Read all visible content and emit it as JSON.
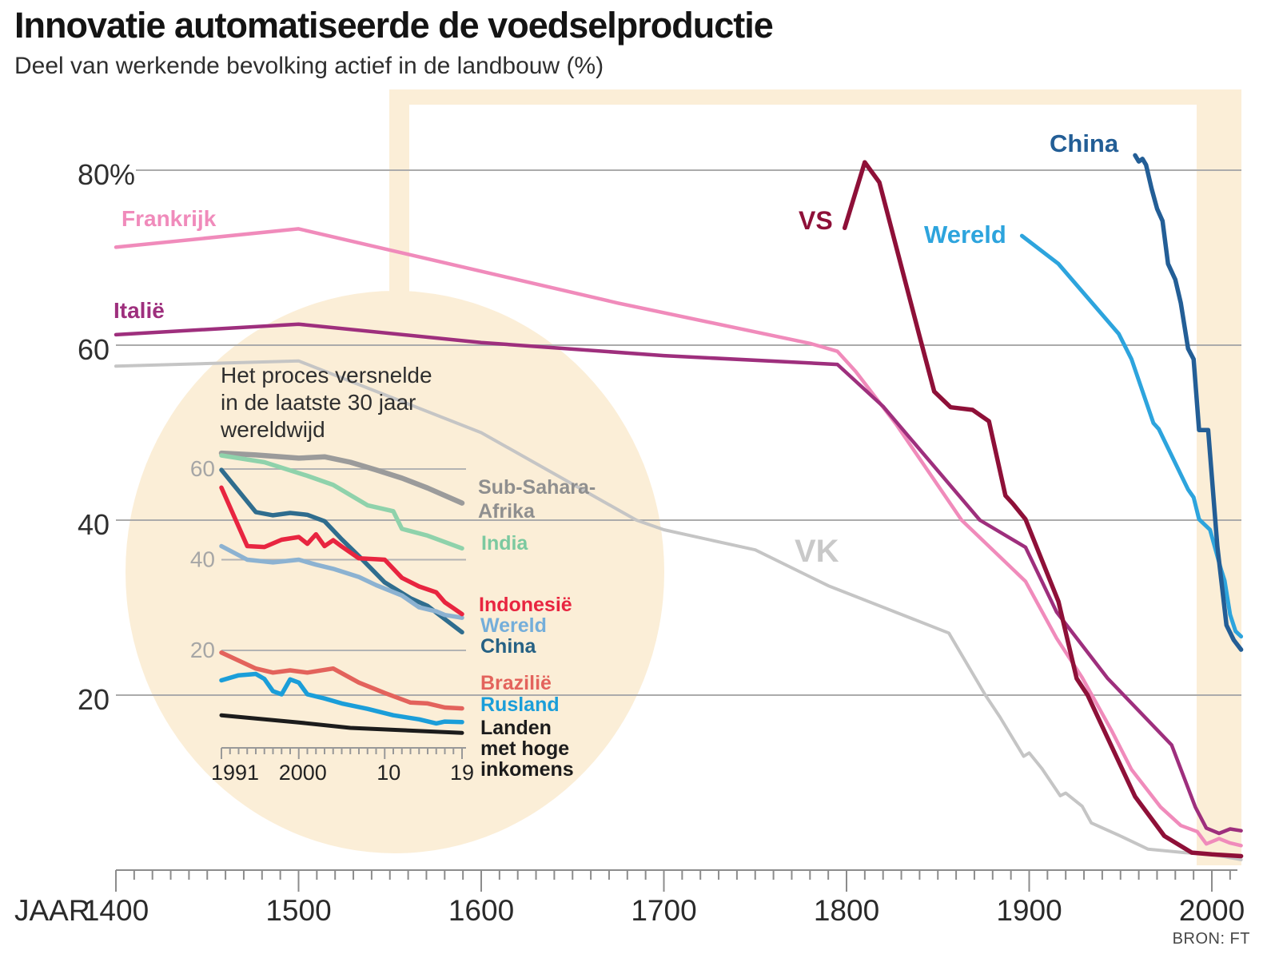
{
  "header": {
    "title": "Innovatie automatiseerde de voedselproductie",
    "subtitle": "Deel van werkende bevolking actief in de landbouw (%)"
  },
  "source": "BRON: FT",
  "chart_data": {
    "type": "line",
    "title": "Innovatie automatiseerde de voedselproductie",
    "subtitle": "Deel van werkende bevolking actief in de landbouw (%)",
    "highlight_color": "#fbeed7",
    "main": {
      "x_axis_title": "JAAR",
      "x_range": [
        1400,
        2019
      ],
      "ylim": [
        0,
        89
      ],
      "grid": true,
      "legend_position": "inline-labels",
      "gridlines": [
        {
          "value": 80,
          "label": "80%"
        },
        {
          "value": 60,
          "label": "60"
        },
        {
          "value": 40,
          "label": "40"
        },
        {
          "value": 20,
          "label": "20"
        }
      ],
      "x_labels": [
        {
          "label": "1400",
          "year": 1400
        },
        {
          "label": "1500",
          "year": 1500
        },
        {
          "label": "1600",
          "year": 1600
        },
        {
          "label": "1700",
          "year": 1700
        },
        {
          "label": "1800",
          "year": 1800
        },
        {
          "label": "1900",
          "year": 1900
        },
        {
          "label": "2000",
          "year": 2000
        }
      ],
      "series": [
        {
          "id": "vk",
          "label": "VK",
          "color": "#c5c5c5",
          "label_color": "#c9c9c9",
          "points": [
            [
              1400,
              57.6
            ],
            [
              1500,
              58.2
            ],
            [
              1600,
              50.0
            ],
            [
              1685,
              40.0
            ],
            [
              1700,
              38.9
            ],
            [
              1750,
              36.6
            ],
            [
              1790,
              32.5
            ],
            [
              1856,
              27.1
            ],
            [
              1876,
              20.0
            ],
            [
              1884,
              17.5
            ],
            [
              1897,
              13.0
            ],
            [
              1900,
              13.4
            ],
            [
              1907,
              11.6
            ],
            [
              1917,
              8.5
            ],
            [
              1920,
              8.8
            ],
            [
              1929,
              7.3
            ],
            [
              1934,
              5.4
            ],
            [
              1951,
              3.8
            ],
            [
              1965,
              2.4
            ],
            [
              1985,
              2.0
            ],
            [
              2000,
              1.8
            ],
            [
              2016,
              1.2
            ]
          ]
        },
        {
          "id": "frankrijk",
          "label": "Frankrijk",
          "color": "#f08bbb",
          "points": [
            [
              1400,
              71.2
            ],
            [
              1500,
              73.3
            ],
            [
              1675,
              64.8
            ],
            [
              1780,
              60.2
            ],
            [
              1795,
              59.3
            ],
            [
              1805,
              57.0
            ],
            [
              1827,
              51.0
            ],
            [
              1863,
              40.0
            ],
            [
              1898,
              33.0
            ],
            [
              1915,
              26.5
            ],
            [
              1929,
              22.0
            ],
            [
              1945,
              16.0
            ],
            [
              1956,
              11.5
            ],
            [
              1972,
              7.2
            ],
            [
              1983,
              5.1
            ],
            [
              1992,
              4.4
            ],
            [
              1997,
              3.0
            ],
            [
              2004,
              3.6
            ],
            [
              2010,
              3.1
            ],
            [
              2016,
              2.8
            ]
          ]
        },
        {
          "id": "italie",
          "label": "Italië",
          "color": "#9e2f7d",
          "points": [
            [
              1400,
              61.2
            ],
            [
              1500,
              62.4
            ],
            [
              1600,
              60.3
            ],
            [
              1700,
              58.8
            ],
            [
              1795,
              57.8
            ],
            [
              1820,
              53.0
            ],
            [
              1873,
              40.0
            ],
            [
              1898,
              36.9
            ],
            [
              1915,
              29.5
            ],
            [
              1943,
              21.9
            ],
            [
              1978,
              14.3
            ],
            [
              1991,
              7.2
            ],
            [
              1997,
              4.8
            ],
            [
              2004,
              4.2
            ],
            [
              2010,
              4.7
            ],
            [
              2016,
              4.5
            ]
          ]
        },
        {
          "id": "vs",
          "label": "VS",
          "color": "#8e1038",
          "points": [
            [
              1799,
              73.4
            ],
            [
              1810,
              80.9
            ],
            [
              1818,
              78.6
            ],
            [
              1840,
              61.0
            ],
            [
              1848,
              54.7
            ],
            [
              1857,
              52.9
            ],
            [
              1869,
              52.6
            ],
            [
              1878,
              51.3
            ],
            [
              1887,
              42.8
            ],
            [
              1891,
              41.9
            ],
            [
              1898,
              40.1
            ],
            [
              1916,
              30.7
            ],
            [
              1926,
              21.9
            ],
            [
              1932,
              20.0
            ],
            [
              1958,
              8.4
            ],
            [
              1974,
              3.9
            ],
            [
              1989,
              2.0
            ],
            [
              2000,
              1.8
            ],
            [
              2016,
              1.6
            ]
          ]
        },
        {
          "id": "wereld",
          "label": "Wereld",
          "color": "#2da4dd",
          "points": [
            [
              1896,
              72.5
            ],
            [
              1916,
              69.3
            ],
            [
              1949,
              61.3
            ],
            [
              1956,
              58.4
            ],
            [
              1968,
              51.1
            ],
            [
              1971,
              50.4
            ],
            [
              1987,
              43.5
            ],
            [
              1990,
              42.6
            ],
            [
              1993,
              40.1
            ],
            [
              1996,
              39.5
            ],
            [
              1999,
              38.9
            ],
            [
              2005,
              34.4
            ],
            [
              2007,
              33.1
            ],
            [
              2010,
              29.2
            ],
            [
              2013,
              27.3
            ],
            [
              2016,
              26.7
            ]
          ]
        },
        {
          "id": "china",
          "label": "China",
          "color": "#235e96",
          "points": [
            [
              1958,
              81.7
            ],
            [
              1960,
              81.0
            ],
            [
              1962,
              81.3
            ],
            [
              1964,
              80.6
            ],
            [
              1967,
              77.9
            ],
            [
              1970,
              75.6
            ],
            [
              1973,
              74.2
            ],
            [
              1976,
              69.3
            ],
            [
              1980,
              67.5
            ],
            [
              1983,
              64.8
            ],
            [
              1987,
              59.6
            ],
            [
              1990,
              58.4
            ],
            [
              1993,
              50.3
            ],
            [
              1998,
              50.3
            ],
            [
              2003,
              37.0
            ],
            [
              2008,
              28.0
            ],
            [
              2012,
              26.3
            ],
            [
              2016,
              25.2
            ]
          ]
        }
      ]
    },
    "inset": {
      "note": [
        "Het proces versnelde",
        "in de laatste 30 jaar",
        "wereldwijd"
      ],
      "x_range": [
        1991,
        2019
      ],
      "ylim": [
        0,
        68
      ],
      "gridlines": [
        {
          "value": 60,
          "label": "60"
        },
        {
          "value": 40,
          "label": "40"
        },
        {
          "value": 20,
          "label": "20"
        }
      ],
      "x_labels": [
        {
          "label": "1991",
          "year": 1991,
          "dx": 17
        },
        {
          "label": "2000",
          "year": 2000,
          "dx": 5
        },
        {
          "label": "10",
          "year": 2010,
          "dx": 5
        },
        {
          "label": "19",
          "year": 2019,
          "dx": 0
        }
      ],
      "major_tick_years": [
        1991,
        2000,
        2010,
        2019
      ],
      "series": [
        {
          "id": "sub_sahara",
          "label": [
            "Sub-Sahara-",
            "Afrika"
          ],
          "color": "#9b9b9b",
          "label_color": "#8f8f8f",
          "points": [
            [
              1991,
              63.5
            ],
            [
              1995,
              63.1
            ],
            [
              2000,
              62.4
            ],
            [
              2003,
              62.7
            ],
            [
              2006,
              61.5
            ],
            [
              2009,
              59.8
            ],
            [
              2012,
              58.0
            ],
            [
              2015,
              55.8
            ],
            [
              2019,
              52.5
            ]
          ]
        },
        {
          "id": "india",
          "label": "India",
          "color": "#8fd2ab",
          "label_color": "#7cc9a0",
          "points": [
            [
              1991,
              63.0
            ],
            [
              1996,
              61.5
            ],
            [
              2001,
              58.5
            ],
            [
              2004,
              56.5
            ],
            [
              2008,
              52.0
            ],
            [
              2011,
              50.7
            ],
            [
              2012,
              46.8
            ],
            [
              2015,
              45.3
            ],
            [
              2019,
              42.5
            ]
          ]
        },
        {
          "id": "china",
          "label": "China",
          "color": "#2f6d8e",
          "label_color": "#266184",
          "points": [
            [
              1991,
              59.8
            ],
            [
              1995,
              50.5
            ],
            [
              1997,
              49.8
            ],
            [
              1999,
              50.3
            ],
            [
              2001,
              49.9
            ],
            [
              2003,
              48.5
            ],
            [
              2005,
              44.5
            ],
            [
              2007,
              40.8
            ],
            [
              2010,
              35.0
            ],
            [
              2013,
              31.5
            ],
            [
              2015,
              29.8
            ],
            [
              2019,
              24.0
            ]
          ]
        },
        {
          "id": "wereld",
          "label": "Wereld",
          "color": "#8cb2d1",
          "label_color": "#74aeda",
          "points": [
            [
              1991,
              43.0
            ],
            [
              1994,
              40.0
            ],
            [
              1997,
              39.4
            ],
            [
              2000,
              40.0
            ],
            [
              2002,
              38.9
            ],
            [
              2004,
              38.0
            ],
            [
              2007,
              36.2
            ],
            [
              2009,
              34.4
            ],
            [
              2012,
              32.1
            ],
            [
              2014,
              29.5
            ],
            [
              2016,
              28.6
            ],
            [
              2017,
              27.8
            ],
            [
              2019,
              27.2
            ]
          ]
        },
        {
          "id": "indonesie",
          "label": "Indonesië",
          "color": "#e82540",
          "points": [
            [
              1991,
              55.9
            ],
            [
              1994,
              43.0
            ],
            [
              1996,
              42.8
            ],
            [
              1998,
              44.4
            ],
            [
              2000,
              45.0
            ],
            [
              2001,
              43.5
            ],
            [
              2002,
              45.6
            ],
            [
              2003,
              43.0
            ],
            [
              2004,
              44.3
            ],
            [
              2005,
              42.9
            ],
            [
              2007,
              40.3
            ],
            [
              2009,
              40.1
            ],
            [
              2010,
              40.0
            ],
            [
              2012,
              36.0
            ],
            [
              2014,
              34.1
            ],
            [
              2016,
              32.8
            ],
            [
              2017,
              30.6
            ],
            [
              2019,
              28.0
            ]
          ]
        },
        {
          "id": "brazilie",
          "label": "Brazilië",
          "color": "#e3635c",
          "points": [
            [
              1991,
              19.5
            ],
            [
              1995,
              16.0
            ],
            [
              1997,
              15.1
            ],
            [
              1999,
              15.6
            ],
            [
              2001,
              15.1
            ],
            [
              2004,
              16.0
            ],
            [
              2007,
              12.9
            ],
            [
              2010,
              10.6
            ],
            [
              2013,
              8.5
            ],
            [
              2015,
              8.3
            ],
            [
              2017,
              7.4
            ],
            [
              2019,
              7.2
            ]
          ]
        },
        {
          "id": "rusland",
          "label": "Rusland",
          "color": "#1b9ed9",
          "points": [
            [
              1991,
              13.4
            ],
            [
              1993,
              14.5
            ],
            [
              1995,
              14.8
            ],
            [
              1996,
              13.7
            ],
            [
              1997,
              11.0
            ],
            [
              1998,
              10.3
            ],
            [
              1999,
              13.6
            ],
            [
              2000,
              12.9
            ],
            [
              2001,
              10.3
            ],
            [
              2003,
              9.4
            ],
            [
              2005,
              8.3
            ],
            [
              2008,
              7.1
            ],
            [
              2011,
              5.7
            ],
            [
              2014,
              4.8
            ],
            [
              2016,
              3.9
            ],
            [
              2017,
              4.3
            ],
            [
              2019,
              4.2
            ]
          ]
        },
        {
          "id": "hoge_inkomens",
          "label": [
            "Landen",
            "met hoge",
            "inkomens"
          ],
          "color": "#1c1c1c",
          "points": [
            [
              1991,
              5.7
            ],
            [
              2000,
              4.1
            ],
            [
              2006,
              2.9
            ],
            [
              2012,
              2.4
            ],
            [
              2019,
              1.8
            ]
          ]
        }
      ]
    }
  }
}
